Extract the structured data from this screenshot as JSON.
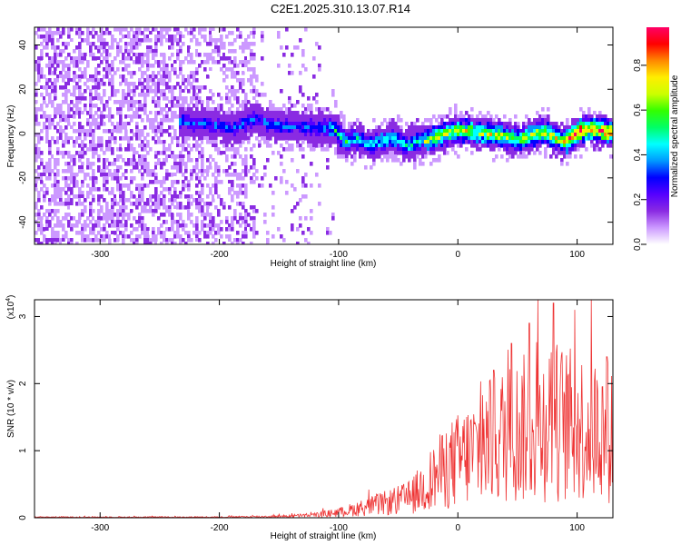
{
  "title": "C2E1.2025.310.13.07.R14",
  "chart_data": [
    {
      "type": "heatmap",
      "xlabel": "Height of straight line (km)",
      "ylabel": "Frequency (Hz)",
      "xlim": [
        -355,
        130
      ],
      "ylim": [
        -50,
        48
      ],
      "xticks": [
        -300,
        -200,
        -100,
        0,
        100
      ],
      "yticks": [
        -40,
        -20,
        0,
        20,
        40
      ],
      "colorbar": {
        "label": "Normalized spectral amplitude",
        "range": [
          0,
          0.97
        ],
        "ticks": [
          0.0,
          0.2,
          0.4,
          0.6,
          0.8
        ],
        "colormap": [
          "#ffffff",
          "#cc99ff",
          "#8a2be2",
          "#5500ff",
          "#0000ff",
          "#0099ff",
          "#00ffff",
          "#00ff66",
          "#33ff00",
          "#ccff00",
          "#ffee00",
          "#ff8800",
          "#ff0000",
          "#ff0066"
        ]
      },
      "ridge": {
        "x": [
          -230,
          -210,
          -190,
          -170,
          -160,
          -140,
          -120,
          -105,
          -95,
          -85,
          -75,
          -65,
          -55,
          -45,
          -35,
          -25,
          -15,
          -5,
          5,
          20,
          35,
          50,
          60,
          70,
          80,
          90,
          100,
          110,
          120,
          130
        ],
        "y": [
          6,
          5,
          3,
          8,
          5,
          4,
          3,
          3,
          -3,
          -2,
          -4,
          -3,
          -1,
          -5,
          -3,
          -2,
          0,
          2,
          2,
          1,
          0,
          -2,
          0,
          2,
          -1,
          -3,
          2,
          3,
          2,
          1
        ]
      }
    },
    {
      "type": "line",
      "xlabel": "Height of straight line (km)",
      "ylabel": "SNR (10 * v/v)",
      "yscale_label": "(x10",
      "yscale_exp": "4",
      "xlim": [
        -355,
        130
      ],
      "ylim": [
        0,
        3.25
      ],
      "xticks": [
        -300,
        -200,
        -100,
        0,
        100
      ],
      "yticks": [
        0,
        1,
        2,
        3
      ],
      "color": "#ee3333",
      "envelope": {
        "x": [
          -355,
          -200,
          -150,
          -120,
          -100,
          -80,
          -60,
          -40,
          -30,
          -20,
          -10,
          0,
          10,
          20,
          30,
          40,
          50,
          60,
          70,
          80,
          90,
          100,
          110,
          120,
          130
        ],
        "y": [
          0.01,
          0.01,
          0.02,
          0.04,
          0.08,
          0.15,
          0.22,
          0.3,
          0.45,
          0.6,
          0.75,
          0.85,
          0.95,
          1.05,
          1.15,
          1.25,
          1.3,
          1.35,
          1.4,
          1.45,
          1.4,
          1.35,
          1.35,
          1.3,
          1.3
        ]
      },
      "peaks": [
        {
          "x": 45,
          "y": 2.6
        },
        {
          "x": 80,
          "y": 3.2
        },
        {
          "x": 98,
          "y": 3.1
        },
        {
          "x": 60,
          "y": 2.9
        },
        {
          "x": 125,
          "y": 2.4
        },
        {
          "x": 30,
          "y": 2.2
        }
      ]
    }
  ]
}
